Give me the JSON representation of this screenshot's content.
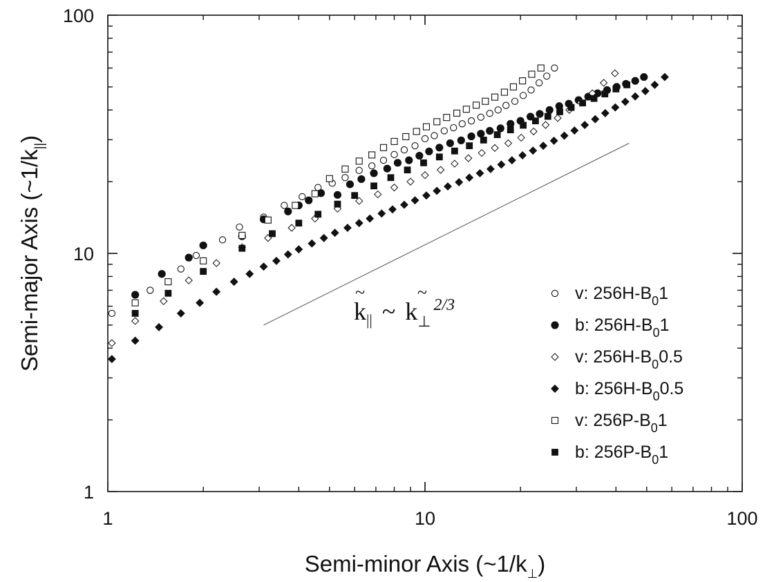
{
  "chart_data": {
    "type": "scatter",
    "title": "",
    "xlabel": "Semi-minor Axis (~1/k̃⊥)",
    "ylabel": "Semi-major Axis (~1/k̃∥)",
    "xlabel_parts": {
      "pre": "Semi-minor Axis (~1/",
      "k": "k",
      "sub": "⊥",
      "post": ")"
    },
    "ylabel_parts": {
      "pre": "Semi-major Axis (~1/",
      "k": "k",
      "sub": "||",
      "post": ")"
    },
    "xscale": "log",
    "yscale": "log",
    "xlim": [
      1,
      100
    ],
    "ylim": [
      1,
      100
    ],
    "xticks": [
      "1",
      "10",
      "100"
    ],
    "yticks": [
      "1",
      "10",
      "100"
    ],
    "grid": false,
    "legend_position": "bottom-right",
    "annotation": {
      "text": "k̃∥ ~ k̃⊥^2/3",
      "lhs": "k",
      "lhs_sub": "||",
      "tilde": "~",
      "rhs": "k",
      "rhs_sub": "⊥",
      "exponent": "2/3"
    },
    "reference_line": {
      "slope": 0.6667,
      "x": [
        3.1,
        44
      ],
      "y": [
        5.0,
        29
      ]
    },
    "series": [
      {
        "name": "v: 256H-B01",
        "legend": {
          "pre": "v: 256H-B",
          "sub": "0",
          "post": "1"
        },
        "marker": "circle-open",
        "x": [
          1.03,
          1.36,
          1.7,
          1.9,
          2.3,
          2.6,
          3.1,
          3.6,
          4.1,
          4.6,
          5.1,
          5.6,
          6.2,
          6.8,
          7.4,
          8.0,
          8.6,
          9.3,
          10.0,
          10.7,
          11.5,
          12.3,
          13.1,
          14.0,
          15.0,
          16.0,
          17.0,
          18.0,
          19.2,
          20.4,
          21.6,
          22.9,
          24.2,
          25.6
        ],
        "y": [
          5.6,
          7.0,
          8.6,
          9.8,
          11.4,
          12.9,
          14.2,
          15.9,
          17.3,
          18.9,
          19.7,
          20.8,
          22.3,
          23.3,
          24.6,
          26.0,
          27.2,
          28.3,
          30.3,
          31.2,
          32.7,
          33.7,
          35.0,
          36.0,
          37.3,
          38.7,
          40.0,
          41.8,
          43.5,
          46.0,
          48.5,
          52.0,
          55.5,
          60.0
        ]
      },
      {
        "name": "b: 256H-B01",
        "legend": {
          "pre": "b: 256H-B",
          "sub": "0",
          "post": "1"
        },
        "marker": "circle-filled",
        "x": [
          1.22,
          1.48,
          1.8,
          2.0,
          2.65,
          3.1,
          3.7,
          4.0,
          4.3,
          4.7,
          5.3,
          5.8,
          6.3,
          6.9,
          7.6,
          8.2,
          8.9,
          9.6,
          10.3,
          11.1,
          12.0,
          13.0,
          14.0,
          15.0,
          16.0,
          17.3,
          18.6,
          20.0,
          21.5,
          23.0,
          24.7,
          26.5,
          28.4,
          30.5,
          32.7,
          35.0,
          37.5,
          40.2,
          43.0,
          46.0,
          49.0
        ],
        "y": [
          6.7,
          8.2,
          9.6,
          10.8,
          11.8,
          13.9,
          15.0,
          15.9,
          16.7,
          17.9,
          17.6,
          19.5,
          20.5,
          21.7,
          22.7,
          24.0,
          24.6,
          25.7,
          26.8,
          27.8,
          29.0,
          29.8,
          31.0,
          31.8,
          32.7,
          33.5,
          35.0,
          36.0,
          37.5,
          38.5,
          40.0,
          41.5,
          42.5,
          44.0,
          45.5,
          47.0,
          48.5,
          50.0,
          51.5,
          53.0,
          55.0
        ]
      },
      {
        "name": "v: 256H-B00.5",
        "legend": {
          "pre": "v: 256H-B",
          "sub": "0",
          "post": "0.5"
        },
        "marker": "diamond-open",
        "x": [
          1.03,
          1.22,
          1.5,
          1.8,
          2.2,
          2.65,
          3.2,
          3.8,
          4.5,
          5.3,
          6.2,
          7.1,
          8.0,
          9.0,
          10.0,
          11.2,
          12.4,
          13.7,
          15.1,
          16.6,
          18.3,
          20.1,
          22.0,
          24.0,
          26.2,
          28.5,
          31.0,
          33.7,
          36.6,
          39.7
        ],
        "y": [
          4.2,
          5.2,
          6.3,
          7.7,
          9.1,
          10.6,
          11.6,
          12.8,
          14.0,
          15.4,
          16.6,
          17.7,
          18.9,
          20.0,
          21.3,
          22.4,
          23.8,
          25.1,
          26.4,
          27.7,
          29.0,
          30.6,
          32.5,
          34.6,
          37.0,
          40.0,
          43.0,
          47.0,
          52.0,
          57.0
        ]
      },
      {
        "name": "b: 256H-B00.5",
        "legend": {
          "pre": "b: 256H-B",
          "sub": "0",
          "post": "0.5"
        },
        "marker": "diamond-filled",
        "x": [
          1.03,
          1.22,
          1.45,
          1.7,
          1.95,
          2.2,
          2.5,
          2.8,
          3.1,
          3.4,
          3.7,
          4.0,
          4.4,
          4.8,
          5.2,
          5.7,
          6.2,
          6.7,
          7.3,
          7.9,
          8.6,
          9.3,
          10.1,
          10.9,
          11.8,
          12.8,
          13.8,
          14.9,
          16.1,
          17.4,
          18.8,
          20.3,
          21.9,
          23.6,
          25.5,
          27.5,
          29.6,
          31.9,
          34.4,
          37.0,
          39.8,
          42.8,
          46.0,
          49.5,
          53.0,
          57.0
        ],
        "y": [
          3.6,
          4.3,
          4.9,
          5.6,
          6.2,
          6.9,
          7.6,
          8.2,
          8.8,
          9.3,
          9.9,
          10.4,
          11.0,
          11.6,
          12.2,
          12.8,
          13.4,
          14.0,
          14.7,
          15.3,
          16.0,
          16.7,
          17.5,
          18.3,
          19.1,
          19.9,
          20.8,
          21.7,
          22.6,
          23.6,
          24.6,
          25.8,
          27.0,
          28.3,
          29.7,
          31.2,
          32.8,
          34.6,
          36.6,
          38.8,
          41.0,
          43.3,
          45.6,
          48.0,
          51.0,
          55.0
        ]
      },
      {
        "name": "v: 256P-B01",
        "legend": {
          "pre": "v: 256P-B",
          "sub": "0",
          "post": "1"
        },
        "marker": "square-open",
        "x": [
          1.22,
          1.55,
          2.0,
          2.65,
          3.2,
          3.9,
          4.5,
          5.0,
          5.6,
          6.2,
          6.8,
          7.4,
          8.0,
          8.7,
          9.4,
          10.1,
          10.9,
          11.7,
          12.6,
          13.5,
          14.5,
          15.5,
          16.6,
          17.8,
          19.0,
          20.3,
          21.7,
          23.2
        ],
        "y": [
          6.2,
          7.6,
          9.3,
          11.9,
          13.8,
          15.9,
          17.8,
          20.6,
          22.6,
          24.4,
          25.9,
          27.8,
          29.5,
          30.9,
          32.5,
          34.0,
          35.7,
          37.2,
          38.8,
          40.3,
          41.9,
          43.5,
          45.3,
          47.5,
          50.0,
          53.0,
          56.5,
          60.0
        ]
      },
      {
        "name": "b: 256P-B01",
        "legend": {
          "pre": "b: 256P-B",
          "sub": "0",
          "post": "1"
        },
        "marker": "square-filled",
        "x": [
          1.22,
          1.55,
          2.0,
          2.65,
          3.3,
          4.0,
          4.6,
          5.3,
          6.0,
          6.9,
          7.8,
          8.8,
          9.9,
          11.1,
          12.4,
          13.8,
          15.3,
          16.9,
          18.6,
          20.4,
          22.3,
          24.4,
          26.6,
          28.9,
          31.4,
          34.1,
          36.9,
          40.0,
          43.3
        ],
        "y": [
          5.6,
          6.8,
          8.4,
          10.5,
          12.1,
          13.4,
          14.6,
          16.1,
          17.5,
          19.2,
          20.8,
          22.4,
          24.0,
          25.4,
          26.9,
          28.3,
          29.9,
          31.5,
          33.0,
          34.5,
          36.0,
          37.6,
          39.3,
          41.0,
          42.8,
          44.7,
          46.7,
          49.0,
          51.0
        ]
      }
    ]
  }
}
